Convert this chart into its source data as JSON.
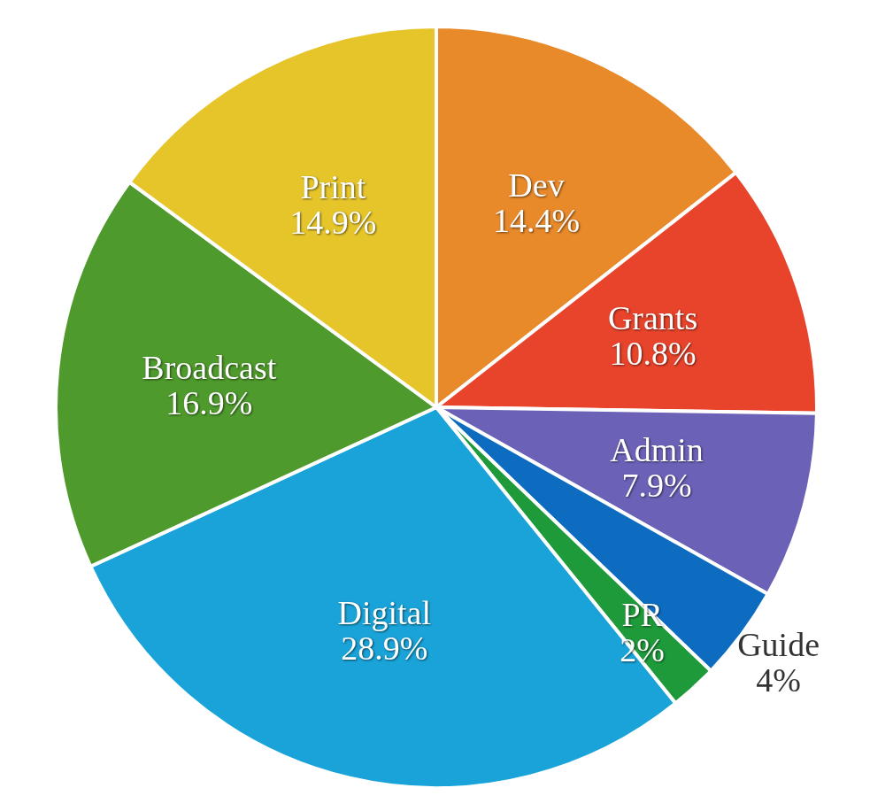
{
  "chart_data": {
    "type": "pie",
    "categories": [
      "Dev",
      "Grants",
      "Admin",
      "Guide",
      "PR",
      "Digital",
      "Broadcast",
      "Print"
    ],
    "values": [
      14.4,
      10.8,
      7.9,
      4,
      2,
      28.9,
      16.9,
      14.9
    ],
    "value_labels": [
      "14.4%",
      "10.8%",
      "7.9%",
      "4%",
      "2%",
      "28.9%",
      "16.9%",
      "14.9%"
    ],
    "colors": [
      "#e8892a",
      "#e8432b",
      "#6b62b8",
      "#0d6cc0",
      "#1f9a3a",
      "#1aa3d8",
      "#4e9a2c",
      "#e6c52b"
    ]
  }
}
